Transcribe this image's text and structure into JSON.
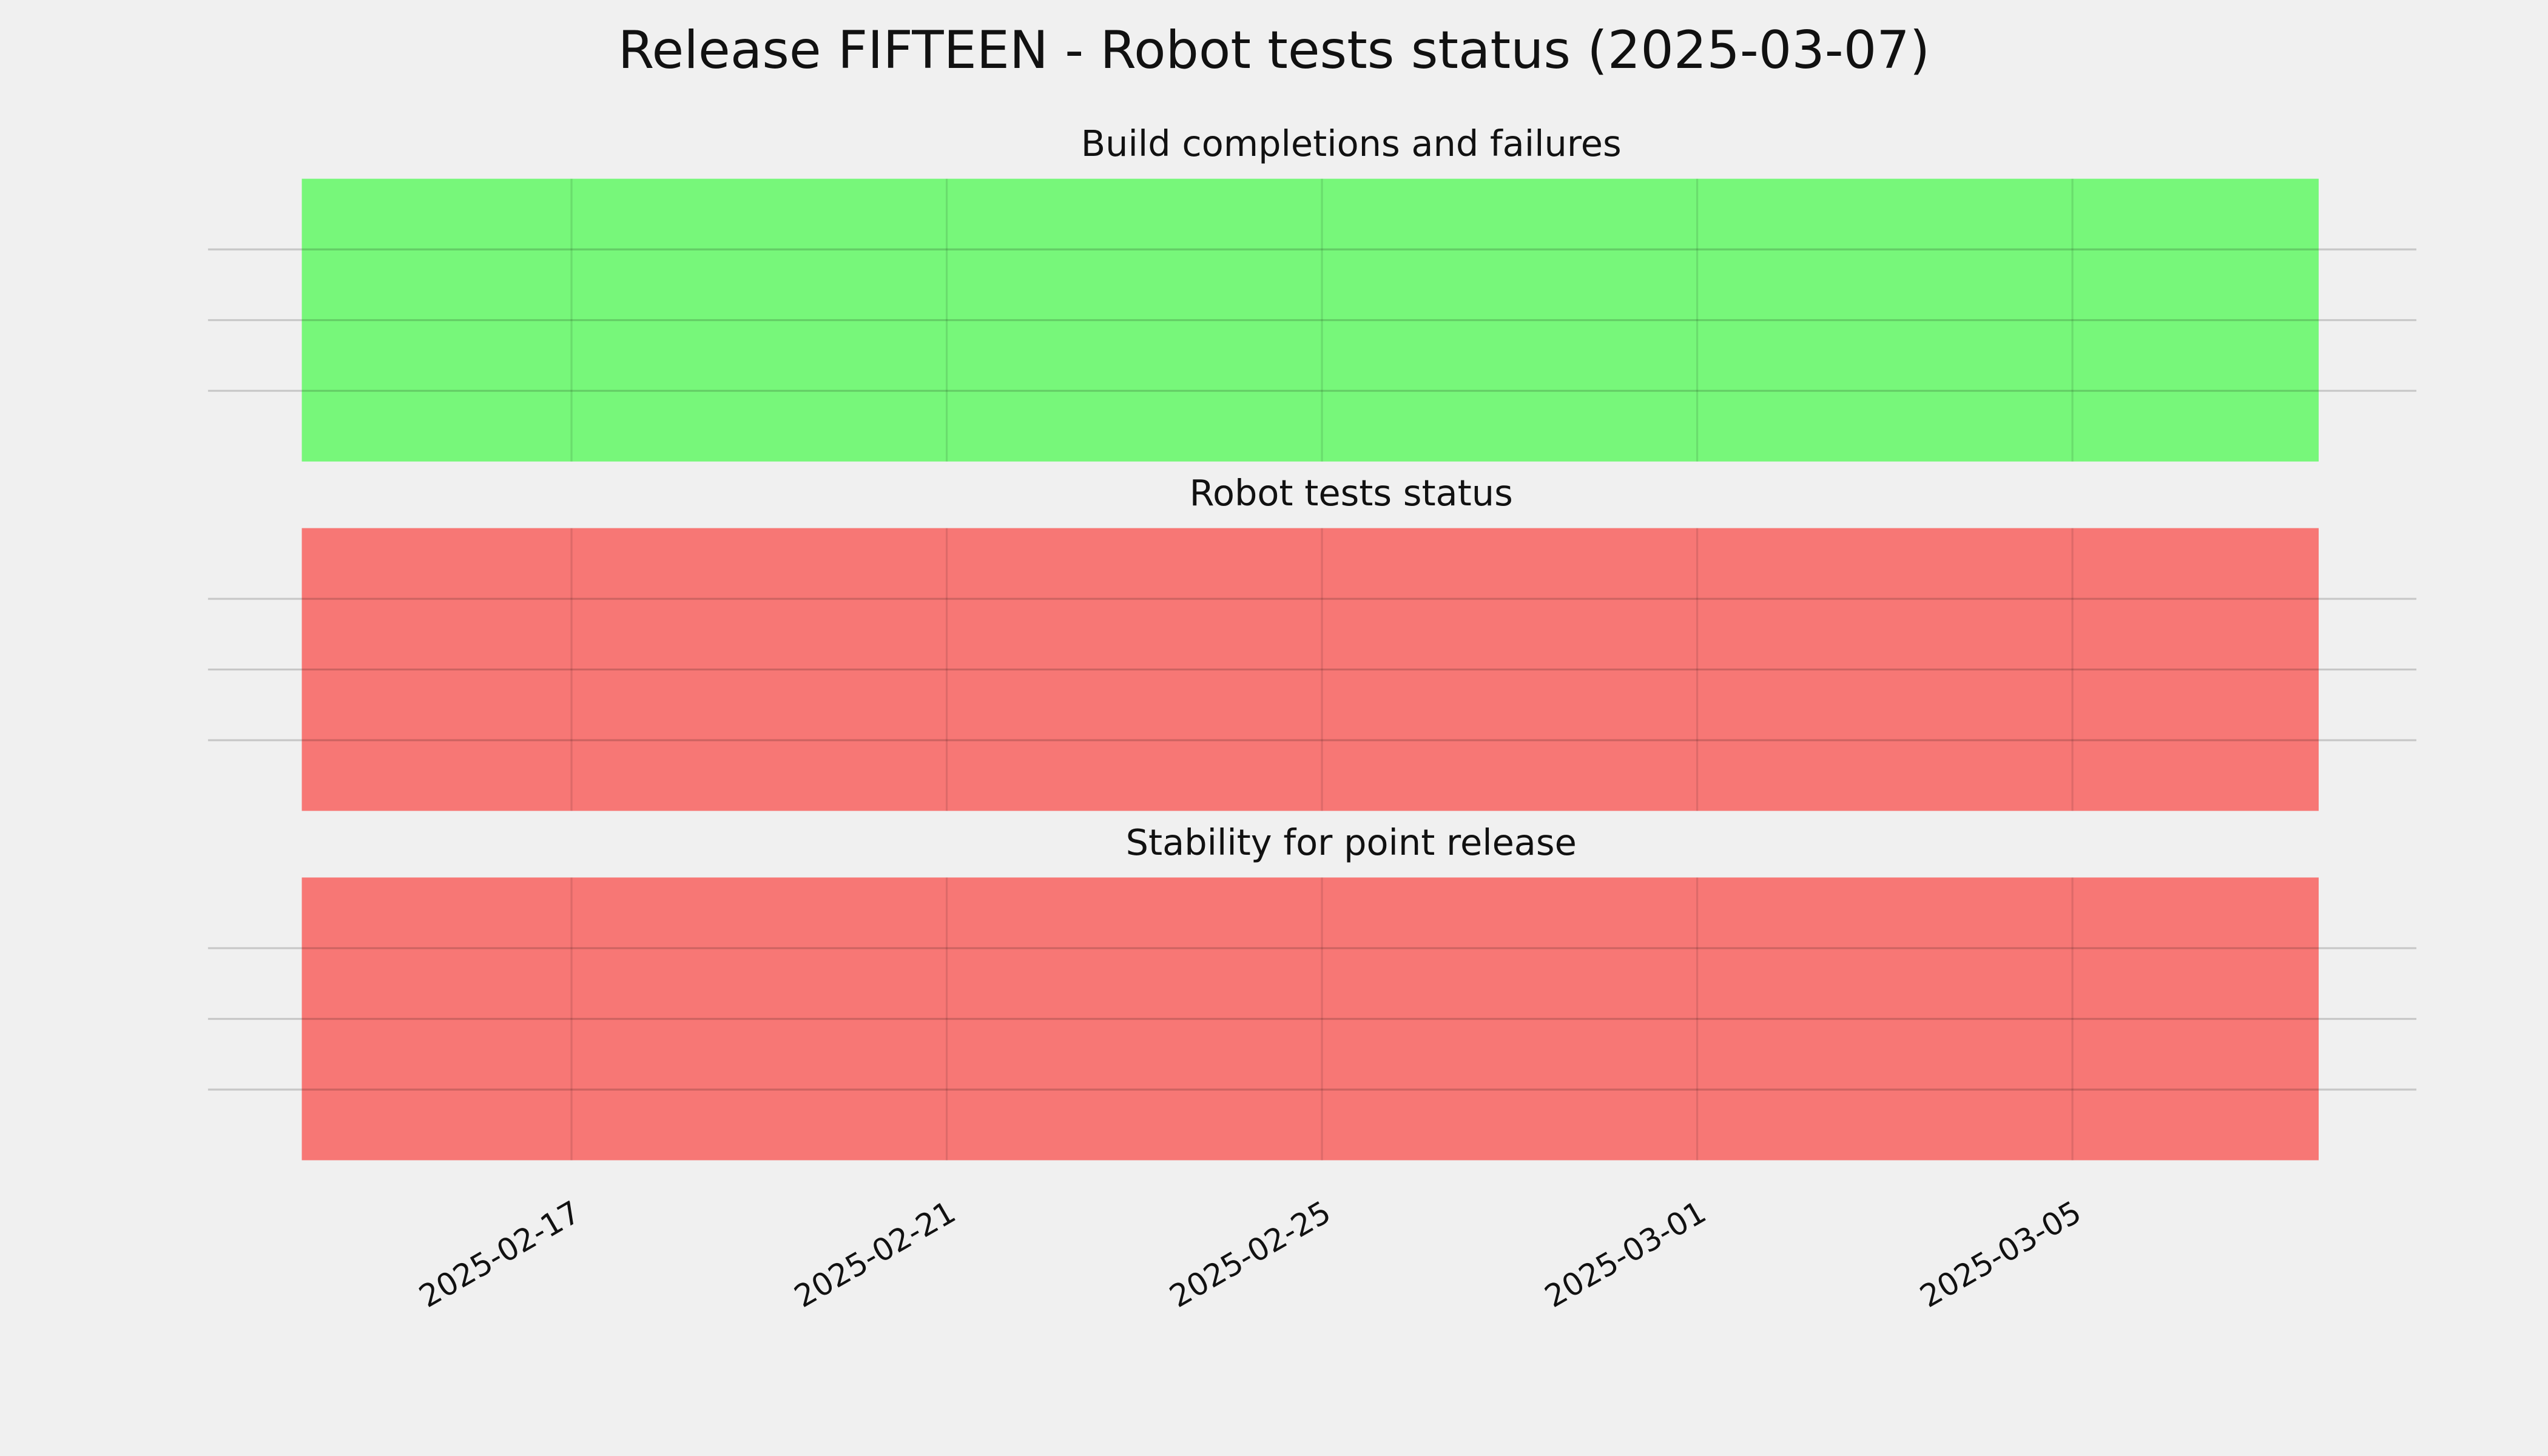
{
  "title": "Release FIFTEEN - Robot tests status (2025-03-07)",
  "chart_data": [
    {
      "type": "span",
      "title": "Build completions and failures",
      "x_span": [
        "2025-02-14T03:00",
        "2025-03-07T15:00"
      ],
      "color": "#77f77a",
      "xlim": [
        "2025-02-13T03:00",
        "2025-03-08T16:00"
      ],
      "xticks": [
        "2025-02-17",
        "2025-02-21",
        "2025-02-25",
        "2025-03-01",
        "2025-03-05"
      ],
      "ylim": [
        0,
        1
      ],
      "yticks": [
        0.25,
        0.5,
        0.75
      ],
      "grid": true
    },
    {
      "type": "span",
      "title": "Robot tests status",
      "x_span": [
        "2025-02-14T03:00",
        "2025-03-07T15:00"
      ],
      "color": "#f77775",
      "xlim": [
        "2025-02-13T03:00",
        "2025-03-08T16:00"
      ],
      "xticks": [
        "2025-02-17",
        "2025-02-21",
        "2025-02-25",
        "2025-03-01",
        "2025-03-05"
      ],
      "ylim": [
        0,
        1
      ],
      "yticks": [
        0.25,
        0.5,
        0.75
      ],
      "grid": true
    },
    {
      "type": "span",
      "title": "Stability for point release",
      "x_span": [
        "2025-02-14T03:00",
        "2025-03-07T15:00"
      ],
      "color": "#f77775",
      "xlim": [
        "2025-02-13T03:00",
        "2025-03-08T16:00"
      ],
      "xticks": [
        "2025-02-17",
        "2025-02-21",
        "2025-02-25",
        "2025-03-01",
        "2025-03-05"
      ],
      "ylim": [
        0,
        1
      ],
      "yticks": [
        0.25,
        0.5,
        0.75
      ],
      "grid": true
    }
  ]
}
